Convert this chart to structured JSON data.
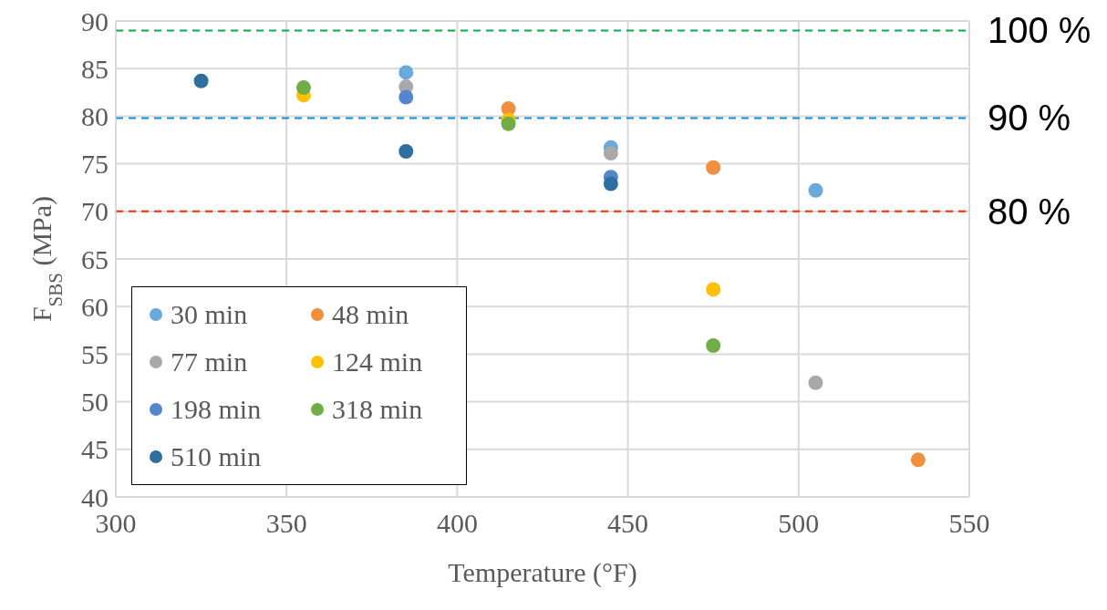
{
  "chart_data": {
    "type": "scatter",
    "xlabel": "Temperature (°F)",
    "ylabel": "F$_{SBS}$ (MPa)",
    "xlim": [
      300,
      550
    ],
    "xticks": [
      300,
      350,
      400,
      450,
      500,
      550
    ],
    "ylim": [
      40,
      90
    ],
    "yticks": [
      40,
      45,
      50,
      55,
      60,
      65,
      70,
      75,
      80,
      85,
      90
    ],
    "grid": true,
    "legend": "bottom left",
    "marker": "circle",
    "series": [
      {
        "name": "30 min",
        "color": "#6aa9dc",
        "x": [
          385,
          445,
          505
        ],
        "values": [
          84.6,
          76.7,
          72.2
        ]
      },
      {
        "name": "48 min",
        "color": "#f08f3e",
        "x": [
          415,
          475,
          535
        ],
        "values": [
          80.8,
          74.6,
          43.9
        ]
      },
      {
        "name": "77 min",
        "color": "#a9a9a9",
        "x": [
          385,
          445,
          505
        ],
        "values": [
          83.1,
          76.1,
          52.0
        ]
      },
      {
        "name": "124 min",
        "color": "#ffc000",
        "x": [
          355,
          415,
          475
        ],
        "values": [
          82.2,
          79.6,
          61.8
        ]
      },
      {
        "name": "198 min",
        "color": "#5585cf",
        "x": [
          385,
          445
        ],
        "values": [
          82.0,
          73.6
        ]
      },
      {
        "name": "318 min",
        "color": "#70ad47",
        "x": [
          355,
          415,
          475
        ],
        "values": [
          83.0,
          79.2,
          55.9
        ]
      },
      {
        "name": "510 min",
        "color": "#2e6fa0",
        "x": [
          325,
          385,
          445
        ],
        "values": [
          83.7,
          76.3,
          72.9
        ]
      }
    ],
    "ref_lines": [
      {
        "axis": "y",
        "value": 89,
        "color": "#00b050",
        "line_style": "dashed"
      },
      {
        "axis": "y",
        "value": 79.8,
        "color": "#0f8fd8",
        "line_style": "dashed"
      },
      {
        "axis": "y",
        "value": 70,
        "color": "#ff2a00",
        "line_style": "dashed"
      }
    ],
    "annotations": [
      "100 %",
      "90 %",
      "80 %"
    ]
  }
}
